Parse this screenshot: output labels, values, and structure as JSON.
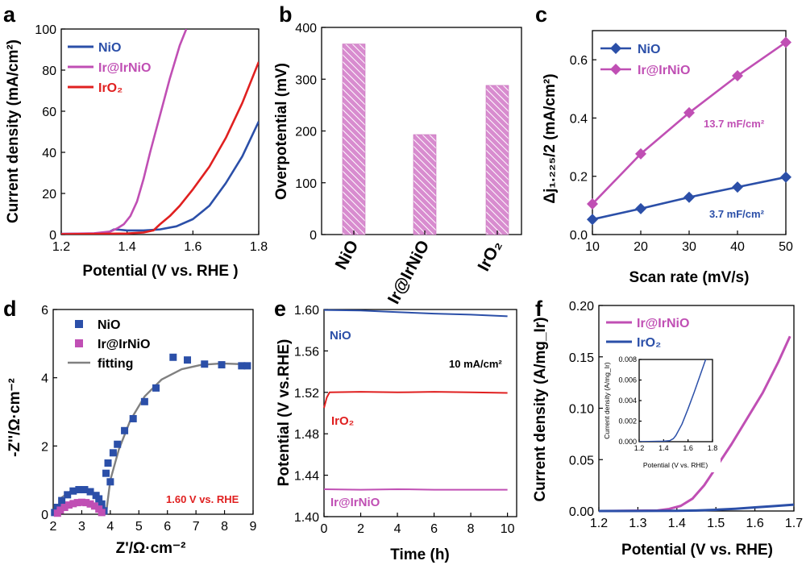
{
  "colors": {
    "nio": "#2b4fa8",
    "irnio": "#c04fb4",
    "iro2": "#e02020",
    "fit": "#808080",
    "axis": "#000000"
  },
  "chart_data": [
    {
      "id": "a",
      "type": "line",
      "panel_label": "a",
      "xlabel": "Potential (V vs. RHE )",
      "ylabel": "Current density (mA/cm²)",
      "xlim": [
        1.2,
        1.8
      ],
      "ylim": [
        0,
        100
      ],
      "xticks": [
        "1.2",
        "1.4",
        "1.6",
        "1.8"
      ],
      "yticks": [
        "0",
        "20",
        "40",
        "60",
        "80",
        "100"
      ],
      "series": [
        {
          "name": "NiO",
          "color_key": "nio",
          "x": [
            1.2,
            1.3,
            1.34,
            1.36,
            1.38,
            1.4,
            1.45,
            1.5,
            1.55,
            1.6,
            1.65,
            1.7,
            1.75,
            1.8
          ],
          "y": [
            0.3,
            0.5,
            0.8,
            2.5,
            2.3,
            2.0,
            2.0,
            2.5,
            4.0,
            7.5,
            14,
            25,
            38,
            55
          ]
        },
        {
          "name": "Ir@IrNiO",
          "color_key": "irnio",
          "x": [
            1.2,
            1.3,
            1.35,
            1.37,
            1.39,
            1.41,
            1.43,
            1.45,
            1.47,
            1.5,
            1.53,
            1.56,
            1.58
          ],
          "y": [
            0.3,
            0.6,
            1.5,
            3,
            5,
            9,
            16,
            27,
            40,
            58,
            76,
            92,
            100
          ]
        },
        {
          "name": "IrO₂",
          "color_key": "iro2",
          "x": [
            1.2,
            1.3,
            1.4,
            1.45,
            1.48,
            1.5,
            1.53,
            1.56,
            1.6,
            1.65,
            1.7,
            1.75,
            1.8
          ],
          "y": [
            0.2,
            0.3,
            0.5,
            1.0,
            2.0,
            5,
            9,
            14,
            22,
            33,
            47,
            64,
            84
          ]
        }
      ]
    },
    {
      "id": "b",
      "type": "bar",
      "panel_label": "b",
      "xlabel": "",
      "ylabel": "Overpotential (mV)",
      "ylim": [
        0,
        400
      ],
      "yticks": [
        "0",
        "100",
        "200",
        "300",
        "400"
      ],
      "categories": [
        "NiO",
        "Ir@IrNiO",
        "IrO₂"
      ],
      "values": [
        368,
        193,
        288
      ],
      "color_key": "irnio"
    },
    {
      "id": "c",
      "type": "line",
      "panel_label": "c",
      "xlabel": "Scan rate (mV/s)",
      "ylabel": "Δj₁.₂₂₅/2 (mA/cm²)",
      "xlim": [
        10,
        50
      ],
      "ylim": [
        0,
        0.7
      ],
      "xticks": [
        "10",
        "20",
        "30",
        "40",
        "50"
      ],
      "yticks": [
        "0.0",
        "0.2",
        "0.4",
        "0.6"
      ],
      "series": [
        {
          "name": "NiO",
          "color_key": "nio",
          "x": [
            10,
            20,
            30,
            40,
            50
          ],
          "y": [
            0.052,
            0.089,
            0.128,
            0.163,
            0.197
          ]
        },
        {
          "name": "Ir@IrNiO",
          "color_key": "irnio",
          "x": [
            10,
            20,
            30,
            40,
            50
          ],
          "y": [
            0.105,
            0.277,
            0.418,
            0.545,
            0.66
          ]
        }
      ],
      "annotations": [
        "13.7 mF/cm²",
        "3.7 mF/cm²"
      ]
    },
    {
      "id": "d",
      "type": "scatter",
      "panel_label": "d",
      "xlabel": "Z'/Ω·cm⁻²",
      "ylabel": "-Z''/Ω·cm⁻²",
      "xlim": [
        2,
        9
      ],
      "ylim": [
        0,
        6
      ],
      "xticks": [
        "2",
        "3",
        "4",
        "5",
        "6",
        "7",
        "8",
        "9"
      ],
      "yticks": [
        "0",
        "2",
        "4",
        "6"
      ],
      "series": [
        {
          "name": "NiO",
          "color_key": "nio",
          "marker": "square",
          "x": [
            2.05,
            2.15,
            2.3,
            2.5,
            2.7,
            2.9,
            3.1,
            3.3,
            3.5,
            3.6,
            3.7,
            3.78,
            3.85,
            3.92,
            4.0,
            4.1,
            4.25,
            4.5,
            4.8,
            5.2,
            5.6,
            6.2,
            6.7,
            7.3,
            7.9,
            8.6,
            8.8
          ],
          "y": [
            0.05,
            0.2,
            0.4,
            0.57,
            0.68,
            0.72,
            0.72,
            0.66,
            0.55,
            0.45,
            0.3,
            0.1,
            1.2,
            1.5,
            0.95,
            1.8,
            2.05,
            2.45,
            2.8,
            3.3,
            3.7,
            4.6,
            4.52,
            4.4,
            4.38,
            4.35,
            4.35
          ]
        },
        {
          "name": "Ir@IrNiO",
          "color_key": "irnio",
          "marker": "square",
          "x": [
            2.15,
            2.25,
            2.4,
            2.55,
            2.7,
            2.85,
            3.0,
            3.15,
            3.3,
            3.45,
            3.6,
            3.7
          ],
          "y": [
            0.03,
            0.12,
            0.2,
            0.27,
            0.31,
            0.34,
            0.35,
            0.34,
            0.3,
            0.24,
            0.15,
            0.05
          ]
        },
        {
          "name": "fitting",
          "color_key": "fit",
          "marker": "line",
          "x": [
            3.85,
            4.0,
            4.3,
            4.7,
            5.2,
            5.8,
            6.5,
            7.2,
            7.9,
            8.5,
            8.9
          ],
          "y": [
            0,
            1.0,
            1.9,
            2.75,
            3.45,
            3.95,
            4.25,
            4.38,
            4.42,
            4.4,
            4.38
          ]
        }
      ],
      "annotations": [
        "1.60 V vs. RHE"
      ]
    },
    {
      "id": "e",
      "type": "line",
      "panel_label": "e",
      "xlabel": "Time (h)",
      "ylabel": "Potential (V vs.RHE)",
      "xlim": [
        0,
        10.5
      ],
      "ylim": [
        1.4,
        1.6
      ],
      "xticks": [
        "0",
        "2",
        "4",
        "6",
        "8",
        "10"
      ],
      "yticks": [
        "1.40",
        "1.44",
        "1.48",
        "1.52",
        "1.56",
        "1.60"
      ],
      "series": [
        {
          "name": "NiO",
          "color_key": "nio",
          "x": [
            0,
            2,
            4,
            6,
            8,
            10
          ],
          "y": [
            1.5995,
            1.599,
            1.5975,
            1.596,
            1.595,
            1.5935
          ]
        },
        {
          "name": "IrO₂",
          "color_key": "iro2",
          "x": [
            0,
            0.15,
            0.3,
            2,
            4,
            6,
            8,
            10
          ],
          "y": [
            1.505,
            1.515,
            1.52,
            1.5205,
            1.52,
            1.5205,
            1.52,
            1.5195
          ]
        },
        {
          "name": "Ir@IrNiO",
          "color_key": "irnio",
          "x": [
            0,
            2,
            4,
            6,
            8,
            10
          ],
          "y": [
            1.4265,
            1.426,
            1.4265,
            1.426,
            1.426,
            1.426
          ]
        }
      ],
      "annotations": [
        "10 mA/cm²"
      ]
    },
    {
      "id": "f",
      "type": "line",
      "panel_label": "f",
      "xlabel": "Potential (V vs. RHE)",
      "ylabel": "Current density (A/mg_Ir)",
      "xlim": [
        1.2,
        1.7
      ],
      "ylim": [
        0,
        0.2
      ],
      "xticks": [
        "1.2",
        "1.3",
        "1.4",
        "1.5",
        "1.6",
        "1.7"
      ],
      "yticks": [
        "0.00",
        "0.05",
        "0.10",
        "0.15",
        "0.20"
      ],
      "series": [
        {
          "name": "Ir@IrNiO",
          "color_key": "irnio",
          "x": [
            1.2,
            1.35,
            1.38,
            1.41,
            1.44,
            1.47,
            1.5,
            1.54,
            1.58,
            1.62,
            1.66,
            1.69
          ],
          "y": [
            0,
            0.0005,
            0.002,
            0.005,
            0.012,
            0.025,
            0.042,
            0.065,
            0.09,
            0.115,
            0.145,
            0.17
          ]
        },
        {
          "name": "IrO₂",
          "color_key": "nio",
          "x": [
            1.2,
            1.4,
            1.45,
            1.5,
            1.55,
            1.6,
            1.65,
            1.7
          ],
          "y": [
            0,
            0.0002,
            0.0005,
            0.0012,
            0.0022,
            0.0035,
            0.0048,
            0.0062
          ]
        }
      ],
      "inset": {
        "xlabel": "Potential (V vs. RHE)",
        "ylabel": "Current density (A/mg_Ir)",
        "xlim": [
          1.2,
          1.8
        ],
        "ylim": [
          0,
          0.008
        ],
        "xticks": [
          "1.2",
          "1.4",
          "1.6",
          "1.8"
        ],
        "yticks": [
          "0.000",
          "0.002",
          "0.004",
          "0.006",
          "0.008"
        ],
        "series": [
          {
            "name": "IrO₂",
            "color_key": "nio",
            "x": [
              1.2,
              1.4,
              1.45,
              1.48,
              1.5,
              1.55,
              1.6,
              1.65,
              1.7,
              1.75
            ],
            "y": [
              0,
              5e-05,
              0.0001,
              0.0003,
              0.0006,
              0.0017,
              0.0032,
              0.0048,
              0.0065,
              0.0082
            ]
          }
        ]
      }
    }
  ]
}
